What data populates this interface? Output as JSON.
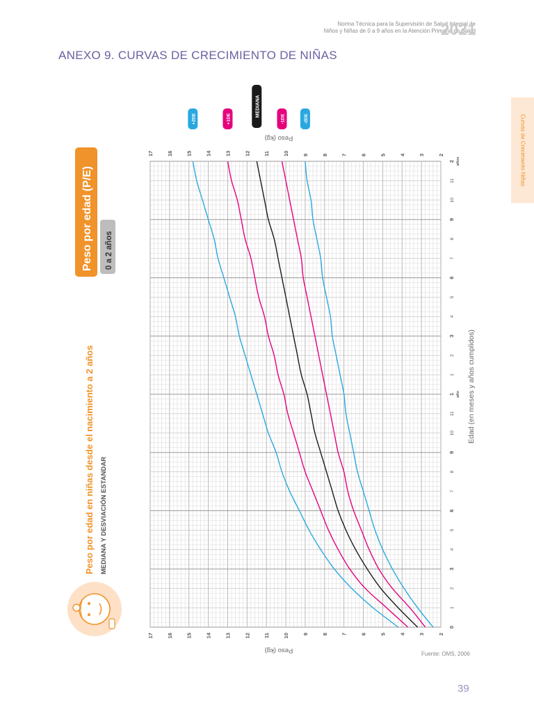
{
  "header": {
    "line1": "Norma Técnica para la Supervisión de Salud Integral de",
    "line2": "Niños y Niñas de 0 a 9 años en la Atención Primaria de Salud",
    "year": "2021"
  },
  "title": "ANEXO 9.    CURVAS DE CRECIMIENTO DE NIÑAS",
  "side_tab": "Curvas de Crecimiento Niñas",
  "page_number": "39",
  "source": "Fuente: OMS, 2006",
  "colors": {
    "accent": "#f0932a",
    "purple": "#6b5fa1",
    "sd2": "#29a8e0",
    "sd1": "#e6007e",
    "median": "#1a1a1a",
    "grid_minor": "#d4d4d4",
    "grid_major": "#9a9a9a"
  },
  "icon": "baby-face-icon",
  "chart_data": {
    "type": "line",
    "title": "Peso por edad en niñas desde el nacimiento a 2 años",
    "subtitle": "MEDIANA Y DESVIACIÓN ESTANDAR",
    "badge": "Peso por edad (P/E)",
    "range_badge": "0 a 2 años",
    "xlabel": "Edad (en meses y años cumplidos)",
    "ylabel": "Peso (kg)",
    "xlim": [
      0,
      24
    ],
    "ylim": [
      2,
      17
    ],
    "grid": true,
    "orientation": "rotated-90",
    "x_ticks": [
      "0",
      "1",
      "2",
      "3",
      "4",
      "5",
      "6",
      "7",
      "8",
      "9",
      "10",
      "11",
      "1",
      "1",
      "2",
      "3",
      "4",
      "5",
      "6",
      "7",
      "8",
      "9",
      "10",
      "11",
      "2"
    ],
    "x_tick_year_labels": {
      "12": "año",
      "24": "años"
    },
    "y_ticks": [
      "2",
      "3",
      "4",
      "5",
      "6",
      "7",
      "8",
      "9",
      "10",
      "11",
      "12",
      "13",
      "14",
      "15",
      "16",
      "17"
    ],
    "series": [
      {
        "name": "+2DE",
        "color": "#29a8e0",
        "x": [
          0,
          1,
          2,
          3,
          4,
          5,
          6,
          7,
          8,
          9,
          10,
          11,
          12,
          13,
          14,
          15,
          16,
          17,
          18,
          19,
          20,
          21,
          22,
          23,
          24
        ],
        "values": [
          4.2,
          5.5,
          6.6,
          7.5,
          8.2,
          8.8,
          9.3,
          9.8,
          10.2,
          10.5,
          10.9,
          11.2,
          11.5,
          11.8,
          12.1,
          12.4,
          12.6,
          12.9,
          13.2,
          13.5,
          13.7,
          14.0,
          14.3,
          14.6,
          14.8
        ]
      },
      {
        "name": "+1DE",
        "color": "#e6007e",
        "x": [
          0,
          1,
          2,
          3,
          4,
          5,
          6,
          7,
          8,
          9,
          10,
          11,
          12,
          13,
          14,
          15,
          16,
          17,
          18,
          19,
          20,
          21,
          22,
          23,
          24
        ],
        "values": [
          3.7,
          4.8,
          5.9,
          6.7,
          7.3,
          7.8,
          8.2,
          8.6,
          9.0,
          9.3,
          9.6,
          9.9,
          10.1,
          10.4,
          10.6,
          10.9,
          11.1,
          11.4,
          11.6,
          11.8,
          12.1,
          12.3,
          12.5,
          12.8,
          13.0
        ]
      },
      {
        "name": "MEDIANA",
        "color": "#1a1a1a",
        "x": [
          0,
          1,
          2,
          3,
          4,
          5,
          6,
          7,
          8,
          9,
          10,
          11,
          12,
          13,
          14,
          15,
          16,
          17,
          18,
          19,
          20,
          21,
          22,
          23,
          24
        ],
        "values": [
          3.2,
          4.2,
          5.1,
          5.8,
          6.4,
          6.9,
          7.3,
          7.6,
          7.9,
          8.2,
          8.5,
          8.7,
          8.9,
          9.2,
          9.4,
          9.6,
          9.8,
          10.0,
          10.2,
          10.4,
          10.6,
          10.9,
          11.1,
          11.3,
          11.5
        ]
      },
      {
        "name": "-1DE",
        "color": "#e6007e",
        "x": [
          0,
          1,
          2,
          3,
          4,
          5,
          6,
          7,
          8,
          9,
          10,
          11,
          12,
          13,
          14,
          15,
          16,
          17,
          18,
          19,
          20,
          21,
          22,
          23,
          24
        ],
        "values": [
          2.8,
          3.6,
          4.5,
          5.2,
          5.7,
          6.1,
          6.5,
          6.8,
          7.0,
          7.3,
          7.5,
          7.7,
          7.9,
          8.1,
          8.3,
          8.5,
          8.7,
          8.9,
          9.1,
          9.2,
          9.4,
          9.6,
          9.8,
          10.0,
          10.2
        ]
      },
      {
        "name": "-2DE",
        "color": "#29a8e0",
        "x": [
          0,
          1,
          2,
          3,
          4,
          5,
          6,
          7,
          8,
          9,
          10,
          11,
          12,
          13,
          14,
          15,
          16,
          17,
          18,
          19,
          20,
          21,
          22,
          23,
          24
        ],
        "values": [
          2.4,
          3.2,
          3.9,
          4.5,
          5.0,
          5.4,
          5.7,
          6.0,
          6.3,
          6.5,
          6.7,
          6.9,
          7.0,
          7.2,
          7.4,
          7.6,
          7.7,
          7.9,
          8.1,
          8.2,
          8.4,
          8.6,
          8.7,
          8.9,
          9.0
        ]
      }
    ]
  }
}
